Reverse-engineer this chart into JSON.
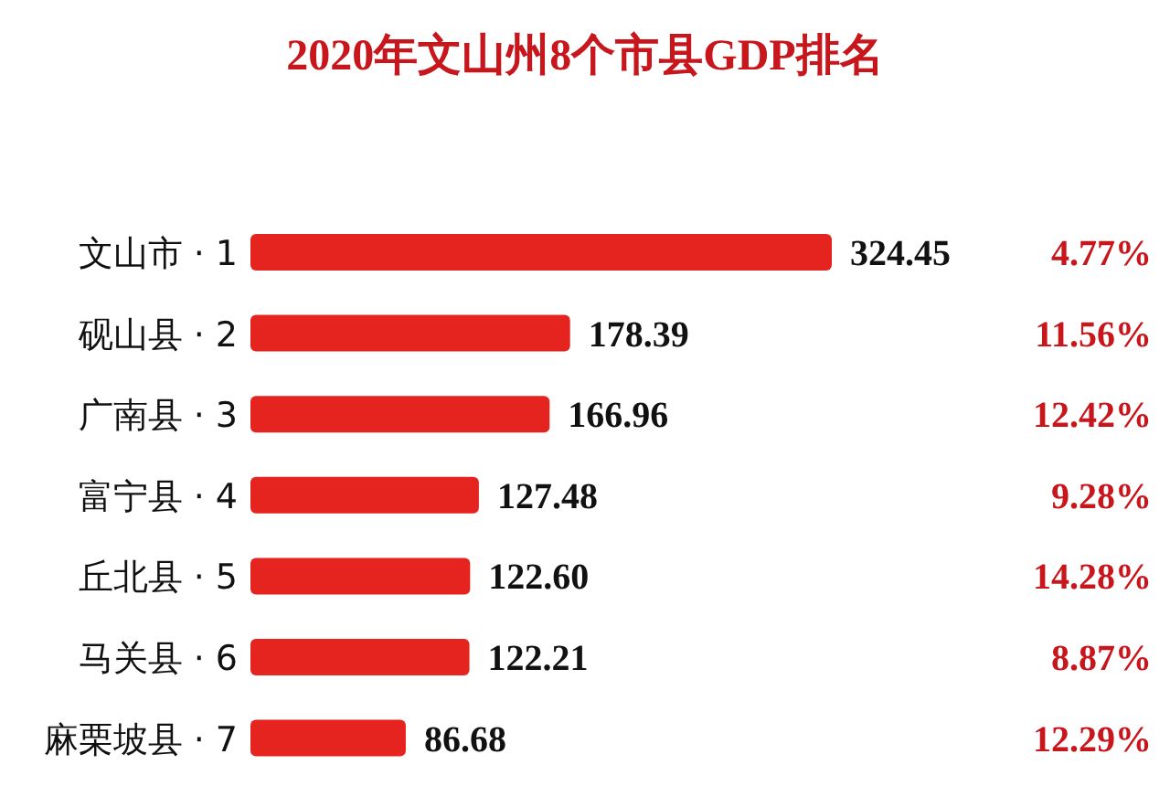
{
  "chart_data": {
    "type": "bar",
    "orientation": "horizontal",
    "title": "2020年文山州8个市县GDP排名",
    "categories": [
      "文山市 · 1",
      "砚山县 · 2",
      "广南县 · 3",
      "富宁县 · 4",
      "丘北县 · 5",
      "马关县 · 6",
      "麻栗坡县 · 7"
    ],
    "values": [
      324.45,
      178.39,
      166.96,
      127.48,
      122.6,
      122.21,
      86.68
    ],
    "value_labels": [
      "324.45",
      "178.39",
      "166.96",
      "127.48",
      "122.60",
      "122.21",
      "86.68"
    ],
    "color": "#e52420",
    "annotations": [
      "4.77%",
      "11.56%",
      "12.42%",
      "9.28%",
      "14.28%",
      "8.87%",
      "12.29%"
    ]
  }
}
